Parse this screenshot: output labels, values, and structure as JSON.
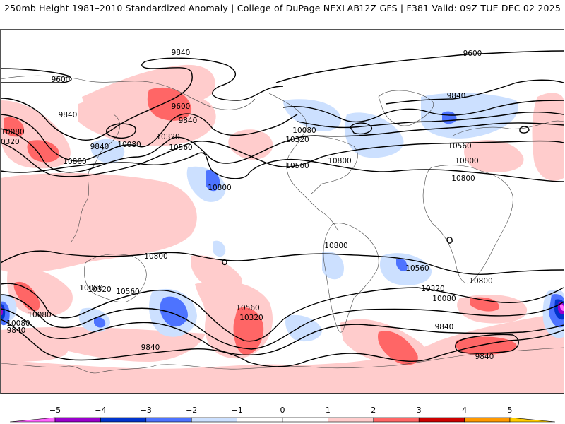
{
  "header": {
    "title_left": "250mb Height 1981–2010 Standardized Anomaly | College of DuPage NEXLAB",
    "title_right": "12Z GFS | F381 Valid: 09Z TUE DEC 02 2025"
  },
  "map": {
    "field": "250mb Height Standardized Anomaly",
    "contour_labels": [
      "9840",
      "9600",
      "9840",
      "9840",
      "10080",
      "10320",
      "10560",
      "10800",
      "9600",
      "9840",
      "9600",
      "9840",
      "10080",
      "10320",
      "10560",
      "10800",
      "10080",
      "10320",
      "10560",
      "10800",
      "10800",
      "10800",
      "10800",
      "10560",
      "10320",
      "10080",
      "10080",
      "10320",
      "10560",
      "9840",
      "10800",
      "10560",
      "10800",
      "10320",
      "10080",
      "9840",
      "10080",
      "9840",
      "9840"
    ]
  },
  "colorbar": {
    "ticks": [
      "−5",
      "−4",
      "−3",
      "−2",
      "−1",
      "0",
      "1",
      "2",
      "3",
      "4",
      "5"
    ],
    "colors": {
      "below_-5": "#ff66ff",
      "-5_-4": "#9900cc",
      "-4_-3": "#0033cc",
      "-3_-2": "#4d73ff",
      "-2_-1": "#cce0ff",
      "-1_0": "#ffffff",
      "0_1": "#ffffff",
      "1_2": "#ffcccc",
      "2_3": "#ff6666",
      "3_4": "#cc0000",
      "4_5": "#ff9900",
      "above_5": "#ffcc00"
    }
  }
}
